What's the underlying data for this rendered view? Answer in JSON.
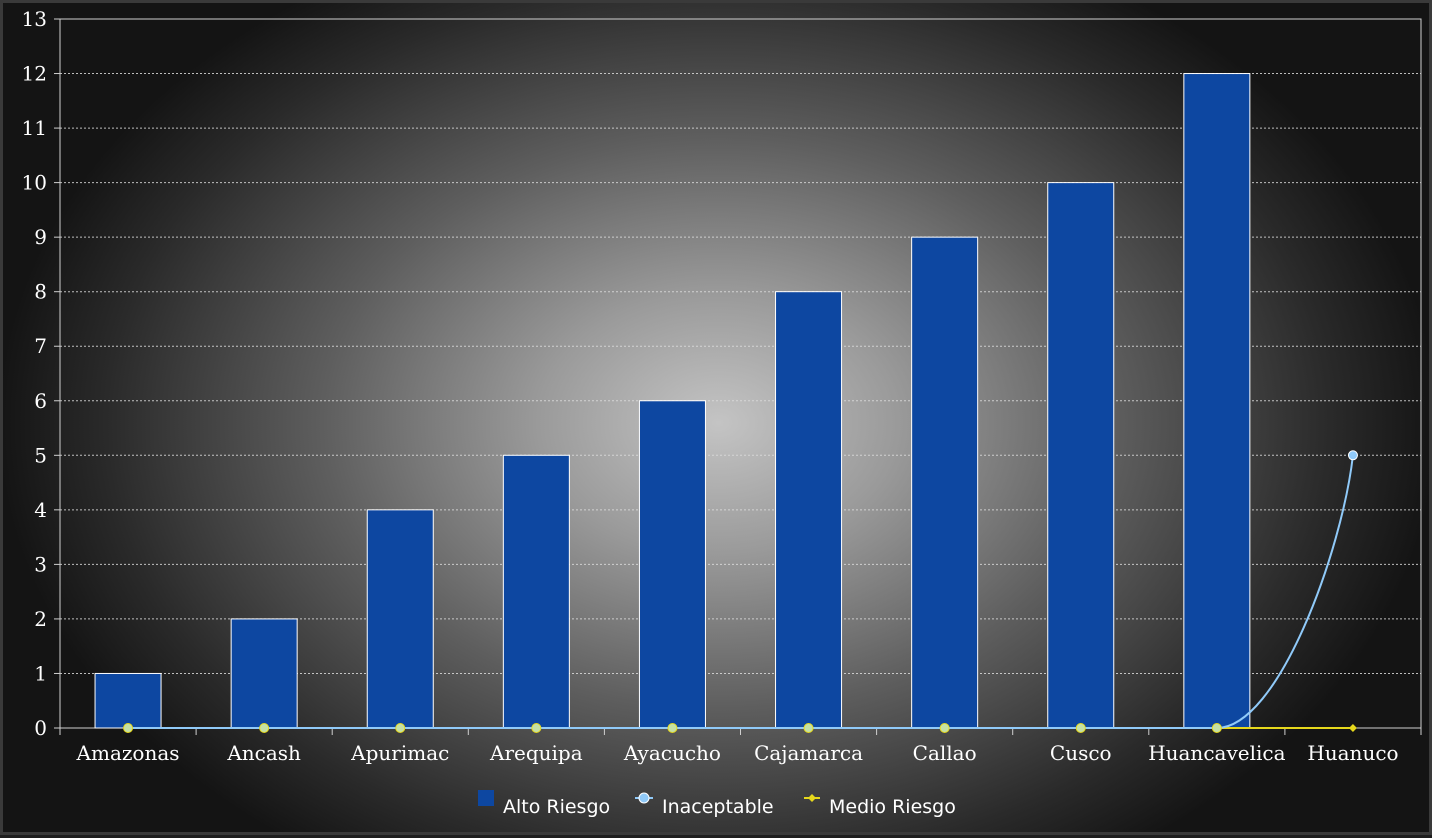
{
  "chart_data": {
    "type": "bar",
    "categories": [
      "Amazonas",
      "Ancash",
      "Apurimac",
      "Arequipa",
      "Ayacucho",
      "Cajamarca",
      "Callao",
      "Cusco",
      "Huancavelica",
      "Huanuco"
    ],
    "series": [
      {
        "name": "Alto Riesgo",
        "type": "bar",
        "color": "#0d47a1",
        "values": [
          1,
          2,
          4,
          5,
          6,
          8,
          9,
          10,
          12,
          null
        ]
      },
      {
        "name": "Inaceptable",
        "type": "line",
        "color": "#90caf9",
        "values": [
          0,
          0,
          0,
          0,
          0,
          0,
          0,
          0,
          0,
          5
        ]
      },
      {
        "name": "Medio Riesgo",
        "type": "line",
        "color": "#e6d81c",
        "values": [
          0,
          0,
          0,
          0,
          0,
          0,
          0,
          0,
          0,
          0
        ]
      }
    ],
    "ylim": [
      0,
      13
    ],
    "yticks": [
      0,
      1,
      2,
      3,
      4,
      5,
      6,
      7,
      8,
      9,
      10,
      11,
      12,
      13
    ],
    "grid": true,
    "legend_position": "bottom-center"
  }
}
